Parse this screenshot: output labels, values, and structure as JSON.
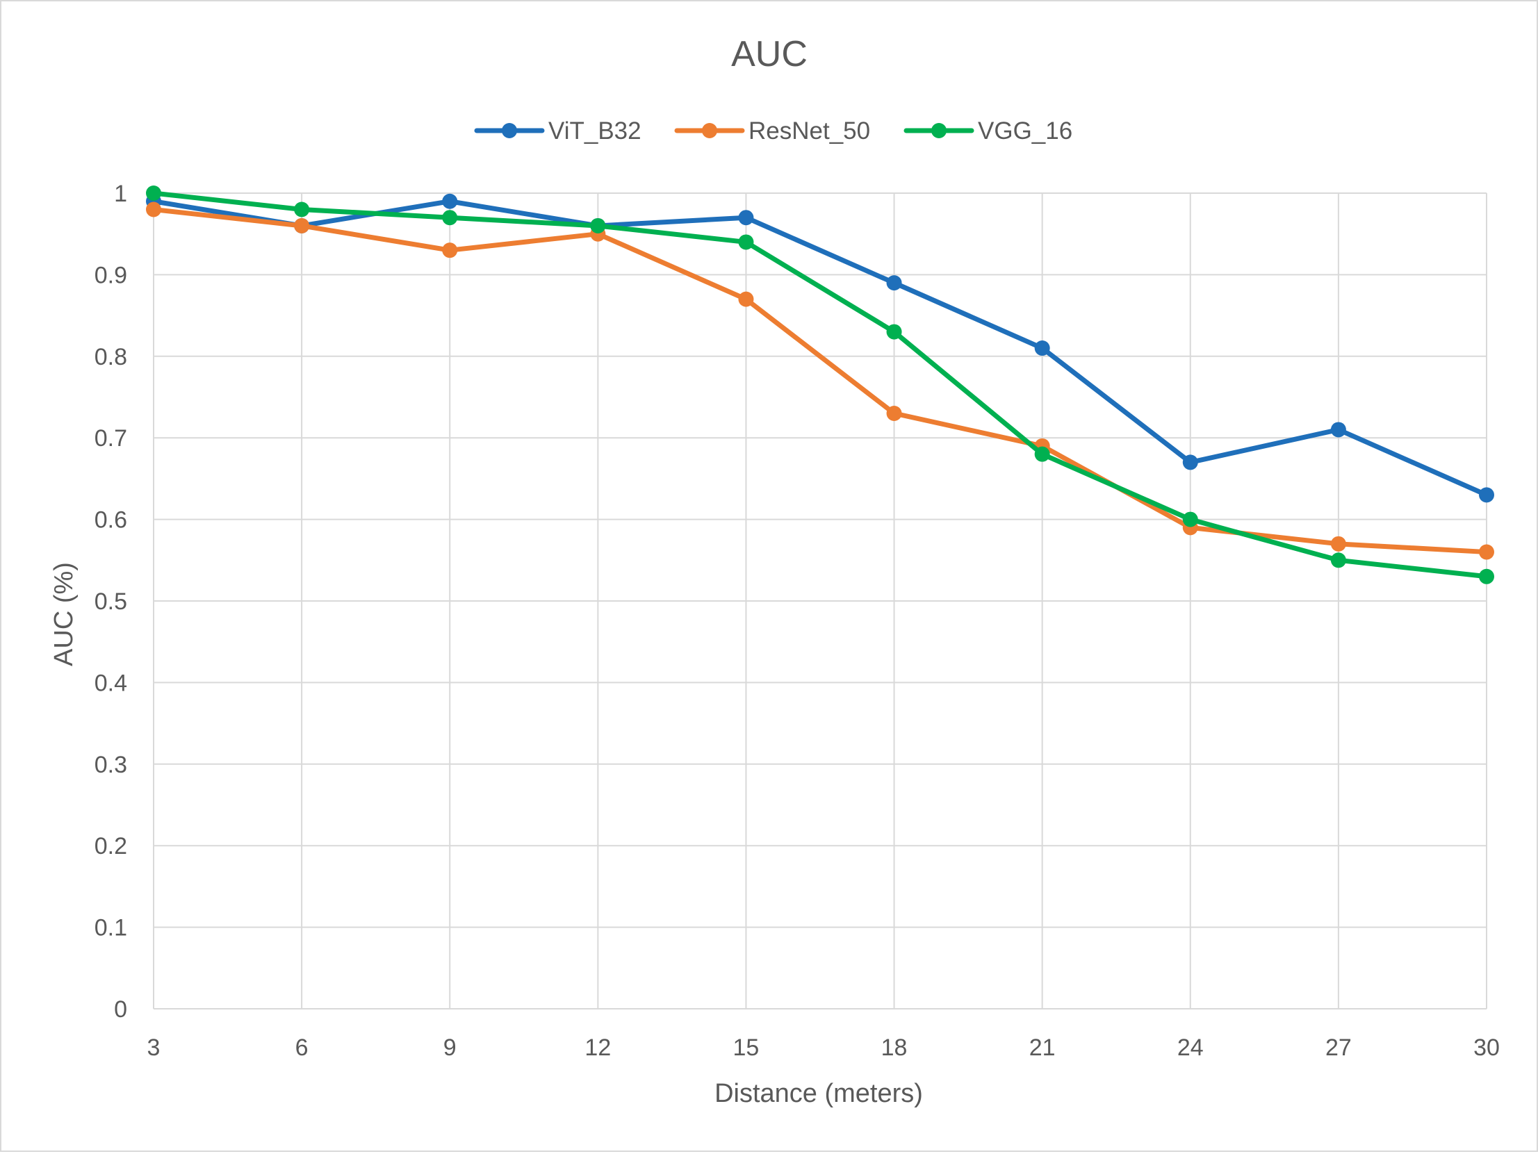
{
  "chart_data": {
    "type": "line",
    "title": "AUC",
    "xlabel": "Distance (meters)",
    "ylabel": "AUC (%)",
    "x": [
      3,
      6,
      9,
      12,
      15,
      18,
      21,
      24,
      27,
      30
    ],
    "x_tick_labels": [
      "3",
      "6",
      "9",
      "12",
      "15",
      "18",
      "21",
      "24",
      "27",
      "30"
    ],
    "ylim": [
      0,
      1
    ],
    "y_tick_labels": [
      "0",
      "0.1",
      "0.2",
      "0.3",
      "0.4",
      "0.5",
      "0.6",
      "0.7",
      "0.8",
      "0.9",
      "1"
    ],
    "grid": true,
    "legend_position": "top",
    "series": [
      {
        "name": "ViT_B32",
        "color": "#1f6fba",
        "values": [
          0.99,
          0.96,
          0.99,
          0.96,
          0.97,
          0.89,
          0.81,
          0.67,
          0.71,
          0.63
        ]
      },
      {
        "name": "ResNet_50",
        "color": "#ed7d31",
        "values": [
          0.98,
          0.96,
          0.93,
          0.95,
          0.87,
          0.73,
          0.69,
          0.59,
          0.57,
          0.56
        ]
      },
      {
        "name": "VGG_16",
        "color": "#00b050",
        "values": [
          1.0,
          0.98,
          0.97,
          0.96,
          0.94,
          0.83,
          0.68,
          0.6,
          0.55,
          0.53
        ]
      }
    ]
  }
}
